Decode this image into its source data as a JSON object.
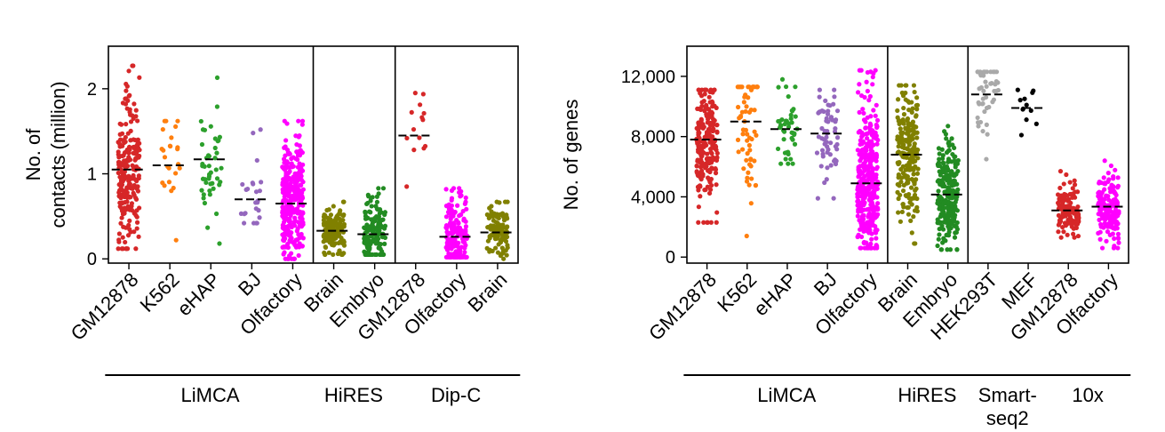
{
  "chart_data": [
    {
      "type": "scatter",
      "ylabel_lines": [
        "No. of",
        "contacts (million)"
      ],
      "ylim": [
        -0.05,
        2.5
      ],
      "yticks": [
        0,
        1,
        2
      ],
      "ytick_labels": [
        "0",
        "1",
        "2"
      ],
      "categories": [
        "GM12878",
        "K562",
        "eHAP",
        "BJ",
        "Olfactory",
        "Brain",
        "Embryo",
        "GM12878",
        "Olfactory",
        "Brain"
      ],
      "colors": [
        "#d62728",
        "#ff7f0e",
        "#2ca02c",
        "#9467bd",
        "#ff00ff",
        "#808000",
        "#228b22",
        "#d62728",
        "#ff00ff",
        "#808000"
      ],
      "medians": [
        1.05,
        1.1,
        1.17,
        0.7,
        0.65,
        0.33,
        0.29,
        1.45,
        0.26,
        0.31
      ],
      "mins": [
        0.12,
        0.22,
        0.18,
        0.42,
        0.0,
        0.05,
        0.05,
        0.85,
        0.02,
        0.0
      ],
      "maxs": [
        2.27,
        1.62,
        2.13,
        1.52,
        1.62,
        0.67,
        0.83,
        1.95,
        0.83,
        0.67
      ],
      "n_points": [
        230,
        24,
        45,
        24,
        320,
        150,
        150,
        14,
        160,
        110
      ],
      "separators_after": [
        4,
        6
      ],
      "groups": [
        {
          "label": "LiMCA",
          "start": 0,
          "end": 4
        },
        {
          "label": "HiRES",
          "start": 5,
          "end": 6
        },
        {
          "label": "Dip-C",
          "start": 7,
          "end": 9
        }
      ]
    },
    {
      "type": "scatter",
      "ylabel_lines": [
        "No. of genes"
      ],
      "ylim": [
        -400,
        14000
      ],
      "yticks": [
        0,
        4000,
        8000,
        12000
      ],
      "ytick_labels": [
        "0",
        "4,000",
        "8,000",
        "12,000"
      ],
      "categories": [
        "GM12878",
        "K562",
        "eHAP",
        "BJ",
        "Olfactory",
        "Brain",
        "Embryo",
        "HEK293T",
        "MEF",
        "GM12878",
        "Olfactory"
      ],
      "colors": [
        "#d62728",
        "#ff7f0e",
        "#2ca02c",
        "#9467bd",
        "#ff00ff",
        "#808000",
        "#228b22",
        "#a9a9a9",
        "#000000",
        "#d62728",
        "#ff00ff"
      ],
      "medians": [
        7800,
        9000,
        8500,
        8200,
        4900,
        6800,
        4150,
        10800,
        9900,
        3100,
        3350
      ],
      "mins": [
        2300,
        1400,
        6200,
        3900,
        600,
        900,
        500,
        6500,
        8100,
        1300,
        600
      ],
      "maxs": [
        11100,
        11300,
        11800,
        11100,
        12400,
        11400,
        8700,
        12300,
        11100,
        5700,
        6400
      ],
      "n_points": [
        230,
        60,
        45,
        60,
        360,
        210,
        230,
        45,
        12,
        120,
        170
      ],
      "separators_after": [
        4,
        6
      ],
      "groups": [
        {
          "label": "LiMCA",
          "start": 0,
          "end": 4
        },
        {
          "label": "HiRES",
          "start": 5,
          "end": 6
        },
        {
          "label": "Smart-\nseq2",
          "start": 7,
          "end": 8
        },
        {
          "label": "10x",
          "start": 9,
          "end": 10
        }
      ]
    }
  ]
}
